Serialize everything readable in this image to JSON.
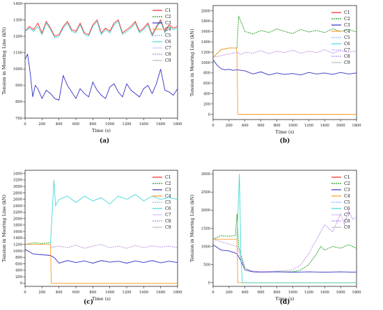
{
  "figure": {
    "panel_labels": [
      "(a)",
      "(b)",
      "(c)",
      "(d)"
    ]
  },
  "legend_colors": {
    "C1": "#ff2222",
    "C2": "#1a9a1a",
    "C3": "#3030c8",
    "C4": "#ff9922",
    "C5": "#88bbff",
    "C6": "#44d8d8",
    "C7": "#cfc0ff",
    "C8": "#bb88ee",
    "C9": "#bbbbbb"
  },
  "chart_data": [
    {
      "type": "line",
      "panel": "(a)",
      "title": "",
      "xlabel": "Time (s)",
      "ylabel": "Tension in Mooring Line (kN)",
      "xlim": [
        0,
        1800
      ],
      "ylim": [
        700,
        1400
      ],
      "xticks": [
        0,
        200,
        400,
        600,
        800,
        1000,
        1200,
        1400,
        1600,
        1800
      ],
      "yticks": [
        700,
        800,
        900,
        1000,
        1100,
        1200,
        1300,
        1400
      ],
      "legend": [
        "C1",
        "C2",
        "C3",
        "C4",
        "C5",
        "C6",
        "C7",
        "C8",
        "C9"
      ],
      "legend_position": "top-right",
      "grid": false,
      "series": [
        {
          "name": "C1",
          "x": [
            0,
            50,
            100,
            150,
            200,
            250,
            300,
            350,
            400,
            450,
            500,
            550,
            600,
            650,
            700,
            750,
            800,
            850,
            900,
            950,
            1000,
            1050,
            1100,
            1150,
            1200,
            1250,
            1300,
            1350,
            1400,
            1450,
            1500,
            1550,
            1600,
            1650,
            1700,
            1750,
            1800
          ],
          "values": [
            1230,
            1260,
            1240,
            1280,
            1220,
            1290,
            1250,
            1200,
            1210,
            1260,
            1290,
            1240,
            1230,
            1280,
            1220,
            1210,
            1270,
            1300,
            1220,
            1250,
            1230,
            1280,
            1300,
            1220,
            1240,
            1260,
            1290,
            1230,
            1250,
            1280,
            1210,
            1260,
            1300,
            1230,
            1270,
            1250,
            1260
          ]
        },
        {
          "name": "C3",
          "x": [
            0,
            30,
            60,
            90,
            120,
            150,
            200,
            250,
            300,
            350,
            400,
            450,
            500,
            550,
            600,
            650,
            700,
            750,
            800,
            850,
            900,
            950,
            1000,
            1050,
            1100,
            1150,
            1200,
            1250,
            1300,
            1350,
            1400,
            1450,
            1500,
            1550,
            1600,
            1650,
            1700,
            1750,
            1800
          ],
          "values": [
            1060,
            1090,
            980,
            830,
            900,
            880,
            820,
            870,
            850,
            820,
            810,
            960,
            900,
            860,
            820,
            880,
            850,
            830,
            920,
            870,
            840,
            820,
            890,
            910,
            860,
            830,
            910,
            870,
            850,
            830,
            880,
            900,
            850,
            910,
            1000,
            870,
            860,
            840,
            880
          ]
        },
        {
          "name": "C6",
          "x": [
            0,
            50,
            100,
            150,
            200,
            250,
            300,
            350,
            400,
            450,
            500,
            550,
            600,
            650,
            700,
            750,
            800,
            850,
            900,
            950,
            1000,
            1050,
            1100,
            1150,
            1200,
            1250,
            1300,
            1350,
            1400,
            1450,
            1500,
            1550,
            1600,
            1650,
            1700,
            1750,
            1800
          ],
          "values": [
            1230,
            1250,
            1230,
            1260,
            1210,
            1280,
            1240,
            1190,
            1200,
            1250,
            1280,
            1230,
            1220,
            1270,
            1210,
            1200,
            1260,
            1290,
            1210,
            1240,
            1220,
            1270,
            1290,
            1210,
            1230,
            1250,
            1280,
            1220,
            1240,
            1270,
            1200,
            1250,
            1290,
            1220,
            1260,
            1240,
            1250
          ]
        }
      ]
    },
    {
      "type": "line",
      "panel": "(b)",
      "title": "",
      "xlabel": "Time (s)",
      "ylabel": "Tension in Mooring Line (kN)",
      "xlim": [
        0,
        1800
      ],
      "ylim": [
        -100,
        2100
      ],
      "xticks": [
        0,
        200,
        400,
        600,
        800,
        1000,
        1200,
        1400,
        1600,
        1800
      ],
      "yticks": [
        0,
        200,
        400,
        600,
        800,
        1000,
        1200,
        1400,
        1600,
        1800,
        2000
      ],
      "legend": [
        "C1",
        "C2",
        "C3",
        "C4",
        "C5",
        "C6",
        "C7",
        "C8",
        "C9"
      ],
      "legend_position": "top-right",
      "grid": false,
      "series": [
        {
          "name": "C2",
          "x": [
            0,
            100,
            200,
            300,
            320,
            400,
            500,
            600,
            700,
            800,
            900,
            1000,
            1100,
            1200,
            1300,
            1400,
            1500,
            1600,
            1700,
            1800
          ],
          "values": [
            1100,
            1250,
            1280,
            1280,
            1900,
            1600,
            1550,
            1620,
            1580,
            1650,
            1600,
            1560,
            1640,
            1590,
            1620,
            1580,
            1650,
            1600,
            1640,
            1590
          ]
        },
        {
          "name": "C3",
          "x": [
            0,
            50,
            100,
            150,
            200,
            250,
            300,
            400,
            500,
            600,
            700,
            800,
            900,
            1000,
            1100,
            1200,
            1300,
            1400,
            1500,
            1600,
            1700,
            1800
          ],
          "values": [
            1050,
            950,
            880,
            860,
            870,
            850,
            860,
            840,
            780,
            820,
            760,
            800,
            770,
            790,
            760,
            810,
            780,
            800,
            770,
            810,
            780,
            800
          ]
        },
        {
          "name": "C4",
          "x": [
            0,
            100,
            200,
            290,
            300,
            310,
            1800
          ],
          "values": [
            1100,
            1250,
            1280,
            1280,
            1200,
            0,
            0
          ]
        },
        {
          "name": "C8",
          "x": [
            0,
            300,
            350,
            400,
            500,
            600,
            700,
            800,
            900,
            1000,
            1100,
            1200,
            1300,
            1400,
            1500,
            1600,
            1700,
            1800
          ],
          "values": [
            1100,
            1200,
            1150,
            1200,
            1180,
            1230,
            1170,
            1220,
            1190,
            1240,
            1180,
            1220,
            1190,
            1250,
            1180,
            1230,
            1200,
            1220
          ]
        }
      ]
    },
    {
      "type": "line",
      "panel": "(c)",
      "title": "",
      "xlabel": "Time (s)",
      "ylabel": "Tension in Mooring Line (kN)",
      "xlim": [
        0,
        1800
      ],
      "ylim": [
        -100,
        3500
      ],
      "xticks": [
        0,
        200,
        400,
        600,
        800,
        1000,
        1200,
        1400,
        1600,
        1800
      ],
      "yticks": [
        0,
        200,
        400,
        600,
        800,
        1000,
        1200,
        1400,
        1600,
        1800,
        2000,
        2200,
        2400,
        2600,
        2800,
        3000,
        3200,
        3400
      ],
      "legend": [
        "C1",
        "C2",
        "C3",
        "C4",
        "C5",
        "C6",
        "C7",
        "C8",
        "C9"
      ],
      "legend_position": "top-right",
      "grid": false,
      "series": [
        {
          "name": "C2",
          "x": [
            0,
            100,
            200,
            300
          ],
          "values": [
            1200,
            1250,
            1230,
            1260
          ]
        },
        {
          "name": "C3",
          "x": [
            0,
            100,
            200,
            300,
            350,
            400,
            500,
            600,
            700,
            800,
            900,
            1000,
            1100,
            1200,
            1300,
            1400,
            1500,
            1600,
            1700,
            1800
          ],
          "values": [
            1050,
            900,
            880,
            860,
            780,
            620,
            700,
            640,
            690,
            620,
            700,
            650,
            680,
            620,
            690,
            640,
            700,
            630,
            680,
            640
          ]
        },
        {
          "name": "C4",
          "x": [
            0,
            300,
            310,
            1800
          ],
          "values": [
            1200,
            1200,
            0,
            0
          ]
        },
        {
          "name": "C6",
          "x": [
            300,
            340,
            360,
            400,
            500,
            600,
            700,
            800,
            900,
            1000,
            1100,
            1200,
            1300,
            1400,
            1500,
            1600,
            1700,
            1800
          ],
          "values": [
            1200,
            3200,
            2400,
            2600,
            2700,
            2500,
            2700,
            2550,
            2650,
            2450,
            2700,
            2600,
            2750,
            2550,
            2700,
            2600,
            2650,
            2600
          ]
        },
        {
          "name": "C8",
          "x": [
            300,
            400,
            500,
            600,
            700,
            800,
            900,
            1000,
            1100,
            1200,
            1300,
            1400,
            1500,
            1600,
            1700,
            1800
          ],
          "values": [
            1100,
            1150,
            1100,
            1180,
            1080,
            1150,
            1200,
            1100,
            1150,
            1080,
            1170,
            1100,
            1160,
            1120,
            1150,
            1100
          ]
        }
      ]
    },
    {
      "type": "line",
      "panel": "(d)",
      "title": "",
      "xlabel": "Time (s)",
      "ylabel": "Tension in Mooring Line (kN)",
      "xlim": [
        0,
        1800
      ],
      "ylim": [
        -100,
        3100
      ],
      "xticks": [
        0,
        200,
        400,
        600,
        800,
        1000,
        1200,
        1400,
        1600,
        1800
      ],
      "yticks": [
        0,
        500,
        1000,
        1500,
        2000,
        2500,
        3000
      ],
      "legend": [
        "C1",
        "C2",
        "C3",
        "C4",
        "C5",
        "C6",
        "C7",
        "C8",
        "C9"
      ],
      "legend_position": "top-right",
      "grid": false,
      "series": [
        {
          "name": "C2",
          "x": [
            0,
            100,
            200,
            280,
            300,
            320,
            400,
            500,
            600,
            800,
            1000,
            1100,
            1200,
            1300,
            1350,
            1400,
            1500,
            1600,
            1700,
            1800
          ],
          "values": [
            1200,
            1300,
            1280,
            1300,
            1900,
            1000,
            400,
            300,
            300,
            300,
            300,
            350,
            500,
            800,
            1000,
            900,
            1000,
            950,
            1050,
            950
          ]
        },
        {
          "name": "C3",
          "x": [
            0,
            100,
            200,
            300,
            350,
            400,
            500,
            600,
            800,
            1000,
            1200,
            1400,
            1600,
            1800
          ],
          "values": [
            1050,
            900,
            880,
            800,
            600,
            350,
            300,
            290,
            300,
            290,
            300,
            290,
            300,
            290
          ]
        },
        {
          "name": "C4",
          "x": [
            0,
            300,
            310,
            1800
          ],
          "values": [
            1200,
            1200,
            0,
            0
          ]
        },
        {
          "name": "C6",
          "x": [
            300,
            330,
            350,
            370,
            1800
          ],
          "values": [
            1200,
            3000,
            600,
            0,
            0
          ]
        },
        {
          "name": "C8",
          "x": [
            0,
            300,
            400,
            600,
            800,
            1000,
            1100,
            1200,
            1300,
            1400,
            1500,
            1600,
            1650,
            1700,
            1750,
            1800
          ],
          "values": [
            1200,
            1000,
            350,
            300,
            320,
            350,
            500,
            800,
            1200,
            1600,
            1400,
            1900,
            1600,
            2000,
            1750,
            1800
          ]
        }
      ]
    }
  ]
}
